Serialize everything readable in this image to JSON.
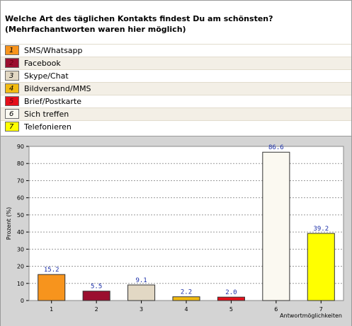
{
  "question": "Welche Art des täglichen Kontakts findest Du am schönsten? (Mehrfachantworten waren hier möglich)",
  "legend": [
    {
      "number": "1",
      "label": "SMS/Whatsapp",
      "color": "#f7941d"
    },
    {
      "number": "2",
      "label": "Facebook",
      "color": "#9b0f2f"
    },
    {
      "number": "3",
      "label": "Skype/Chat",
      "color": "#e2d8c4"
    },
    {
      "number": "4",
      "label": "Bildversand/MMS",
      "color": "#f2bb12"
    },
    {
      "number": "5",
      "label": "Brief/Postkarte",
      "color": "#e50f1b"
    },
    {
      "number": "6",
      "label": "Sich treffen",
      "color": "#fbf9f1"
    },
    {
      "number": "7",
      "label": "Telefonieren",
      "color": "#ffff00"
    }
  ],
  "chart_data": {
    "type": "bar",
    "categories": [
      "1",
      "2",
      "3",
      "4",
      "5",
      "6",
      "7"
    ],
    "values": [
      15.2,
      5.5,
      9.1,
      2.2,
      2.0,
      86.6,
      39.2
    ],
    "value_labels": [
      "15.2",
      "5.5",
      "9.1",
      "2.2",
      "2.0",
      "86.6",
      "39.2"
    ],
    "colors": [
      "#f7941d",
      "#9b0f2f",
      "#e2d8c4",
      "#f2bb12",
      "#e50f1b",
      "#fbf9f1",
      "#ffff00"
    ],
    "xlabel": "Antwortmöglichkeiten",
    "ylabel": "Prozent (%)",
    "ylim": [
      0,
      90
    ],
    "yticks": [
      "0",
      "10",
      "20",
      "30",
      "40",
      "50",
      "60",
      "70",
      "80",
      "90"
    ],
    "grid": true
  }
}
